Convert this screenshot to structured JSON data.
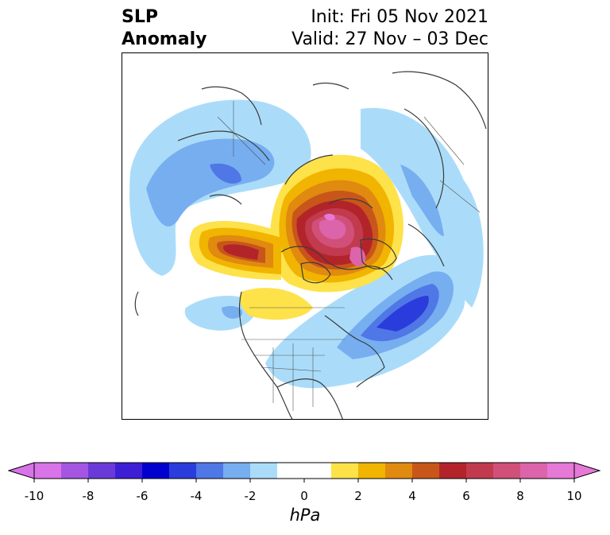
{
  "title": {
    "left_line1": "SLP",
    "left_line2": "Anomaly",
    "right_line1": "Init: Fri 05 Nov 2021",
    "right_line2": "Valid: 27 Nov – 03 Dec"
  },
  "colorbar": {
    "units": "hPa",
    "min": -10,
    "max": 10,
    "ticks": [
      "-10",
      "-8",
      "-6",
      "-4",
      "-2",
      "0",
      "2",
      "4",
      "6",
      "8",
      "10"
    ],
    "colors": [
      "#d873e8",
      "#a456e2",
      "#6a3ad9",
      "#3c1fd4",
      "#0000cf",
      "#2a3cdb",
      "#4f77e6",
      "#76aef0",
      "#aadcfa",
      "#ffffff",
      "#ffffff",
      "#fde24a",
      "#f1b400",
      "#e08a10",
      "#c8561a",
      "#b3242a",
      "#c23a4e",
      "#d0507a",
      "#dc64aa",
      "#e678d6"
    ]
  },
  "colors": {
    "coastline": "#3a3a3a",
    "border": "#000000"
  }
}
